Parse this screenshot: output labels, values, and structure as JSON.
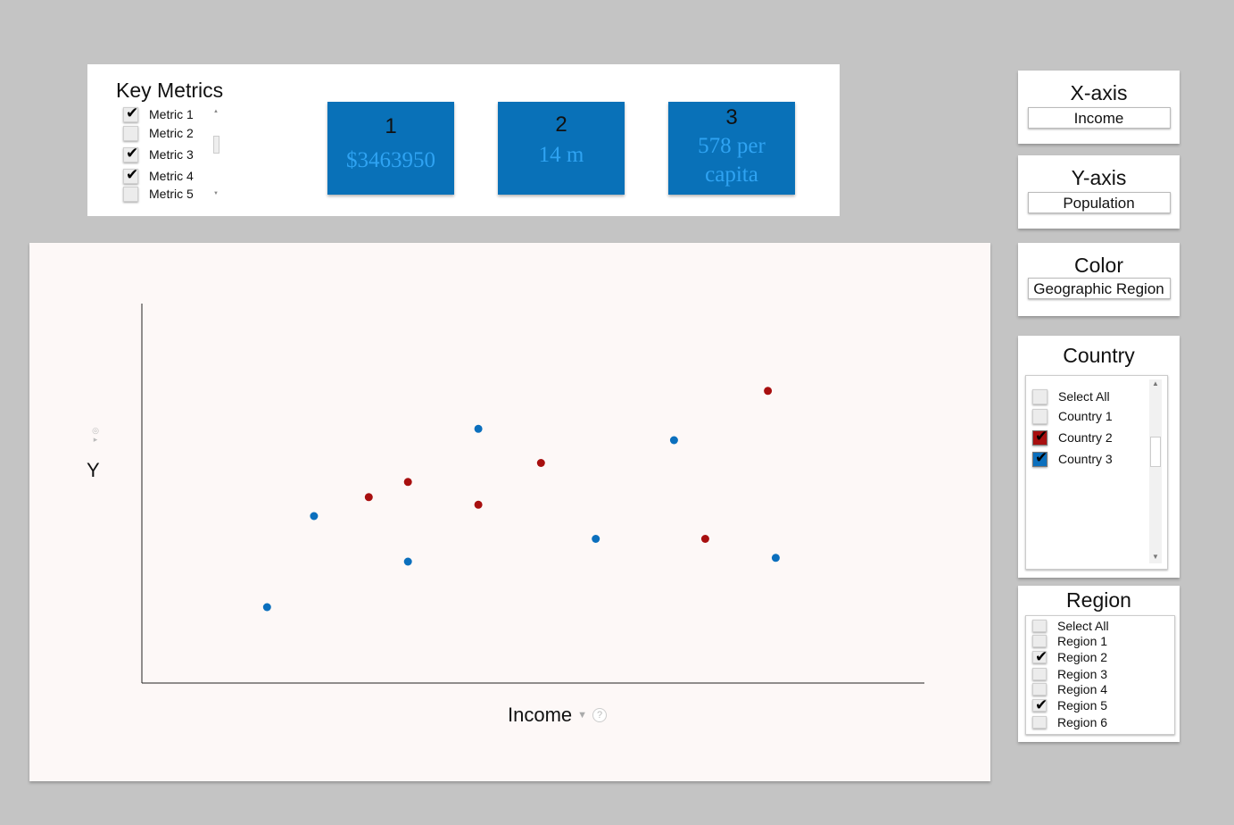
{
  "key_metrics": {
    "title": "Key Metrics",
    "items": [
      {
        "label": "Metric 1",
        "checked": true
      },
      {
        "label": "Metric 2",
        "checked": false
      },
      {
        "label": "Metric 3",
        "checked": true
      },
      {
        "label": "Metric 4",
        "checked": true
      },
      {
        "label": "Metric 5",
        "checked": false
      }
    ],
    "kpis": [
      {
        "number": "1",
        "value": "$3463950"
      },
      {
        "number": "2",
        "value": "14 m"
      },
      {
        "number": "3",
        "value": "578 per capita"
      }
    ]
  },
  "axis_selectors": {
    "x": {
      "title": "X-axis",
      "value": "Income"
    },
    "y": {
      "title": "Y-axis",
      "value": "Population"
    },
    "color": {
      "title": "Color",
      "value": "Geographic Region"
    }
  },
  "country_filter": {
    "title": "Country",
    "items": [
      {
        "label": "Select All",
        "checked": false,
        "color": ""
      },
      {
        "label": "Country 1",
        "checked": false,
        "color": ""
      },
      {
        "label": "Country 2",
        "checked": true,
        "color": "#a80f0f"
      },
      {
        "label": "Country 3",
        "checked": true,
        "color": "#0b6fbd"
      }
    ]
  },
  "region_filter": {
    "title": "Region",
    "items": [
      {
        "label": "Select All",
        "checked": false
      },
      {
        "label": "Region 1",
        "checked": false
      },
      {
        "label": "Region 2",
        "checked": true
      },
      {
        "label": "Region 3",
        "checked": false
      },
      {
        "label": "Region 4",
        "checked": false
      },
      {
        "label": "Region 5",
        "checked": true
      },
      {
        "label": "Region 6",
        "checked": false
      }
    ]
  },
  "chart_data": {
    "type": "scatter",
    "xlabel": "Income",
    "ylabel": "Y",
    "xlim": [
      0,
      100
    ],
    "ylim": [
      0,
      100
    ],
    "grid": false,
    "series": [
      {
        "color": "#0b6fbd",
        "points": [
          [
            16,
            20
          ],
          [
            22,
            44
          ],
          [
            34,
            32
          ],
          [
            43,
            67
          ],
          [
            58,
            38
          ],
          [
            68,
            64
          ],
          [
            81,
            33
          ]
        ]
      },
      {
        "color": "#a80f0f",
        "points": [
          [
            29,
            49
          ],
          [
            34,
            53
          ],
          [
            43,
            47
          ],
          [
            51,
            58
          ],
          [
            72,
            38
          ],
          [
            80,
            77
          ]
        ]
      }
    ]
  }
}
